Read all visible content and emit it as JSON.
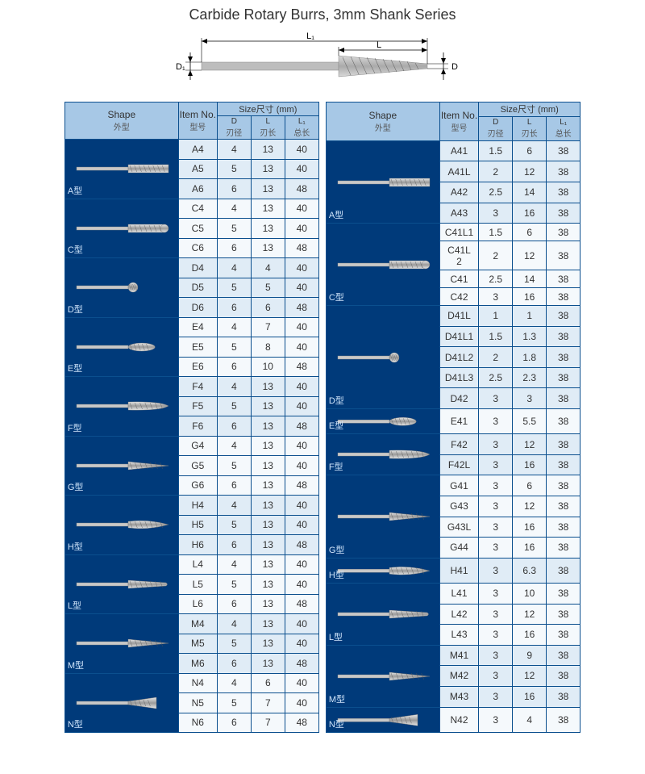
{
  "title": "Carbide Rotary Burrs, 3mm Shank Series",
  "diagram": {
    "labels": {
      "L1": "L₁",
      "L": "L",
      "D1": "D₁",
      "D": "D"
    }
  },
  "headers": {
    "shape": "Shape",
    "shape_sub": "外型",
    "item": "Item No.",
    "item_sub": "型号",
    "size": "Size尺寸   (mm)",
    "d": "D",
    "d_sub": "刃径",
    "l": "L",
    "l_sub": "刃长",
    "l1": "L₁",
    "l1_sub": "总长"
  },
  "left": {
    "groups": [
      {
        "label": "A型",
        "shape": "cylinder",
        "rows": [
          [
            "A4",
            "4",
            "13",
            "40"
          ],
          [
            "A5",
            "5",
            "13",
            "40"
          ],
          [
            "A6",
            "6",
            "13",
            "48"
          ]
        ]
      },
      {
        "label": "C型",
        "shape": "ball-nose",
        "rows": [
          [
            "C4",
            "4",
            "13",
            "40"
          ],
          [
            "C5",
            "5",
            "13",
            "40"
          ],
          [
            "C6",
            "6",
            "13",
            "48"
          ]
        ]
      },
      {
        "label": "D型",
        "shape": "ball",
        "rows": [
          [
            "D4",
            "4",
            "4",
            "40"
          ],
          [
            "D5",
            "5",
            "5",
            "40"
          ],
          [
            "D6",
            "6",
            "6",
            "48"
          ]
        ]
      },
      {
        "label": "E型",
        "shape": "oval",
        "rows": [
          [
            "E4",
            "4",
            "7",
            "40"
          ],
          [
            "E5",
            "5",
            "8",
            "40"
          ],
          [
            "E6",
            "6",
            "10",
            "48"
          ]
        ]
      },
      {
        "label": "F型",
        "shape": "tree-round",
        "rows": [
          [
            "F4",
            "4",
            "13",
            "40"
          ],
          [
            "F5",
            "5",
            "13",
            "40"
          ],
          [
            "F6",
            "6",
            "13",
            "48"
          ]
        ]
      },
      {
        "label": "G型",
        "shape": "tree-point",
        "rows": [
          [
            "G4",
            "4",
            "13",
            "40"
          ],
          [
            "G5",
            "5",
            "13",
            "40"
          ],
          [
            "G6",
            "6",
            "13",
            "48"
          ]
        ]
      },
      {
        "label": "H型",
        "shape": "flame",
        "rows": [
          [
            "H4",
            "4",
            "13",
            "40"
          ],
          [
            "H5",
            "5",
            "13",
            "40"
          ],
          [
            "H6",
            "6",
            "13",
            "48"
          ]
        ]
      },
      {
        "label": "L型",
        "shape": "cone-round",
        "rows": [
          [
            "L4",
            "4",
            "13",
            "40"
          ],
          [
            "L5",
            "5",
            "13",
            "40"
          ],
          [
            "L6",
            "6",
            "13",
            "48"
          ]
        ]
      },
      {
        "label": "M型",
        "shape": "cone",
        "rows": [
          [
            "M4",
            "4",
            "13",
            "40"
          ],
          [
            "M5",
            "5",
            "13",
            "40"
          ],
          [
            "M6",
            "6",
            "13",
            "48"
          ]
        ]
      },
      {
        "label": "N型",
        "shape": "inv-cone",
        "rows": [
          [
            "N4",
            "4",
            "6",
            "40"
          ],
          [
            "N5",
            "5",
            "7",
            "40"
          ],
          [
            "N6",
            "6",
            "7",
            "48"
          ]
        ]
      }
    ]
  },
  "right": {
    "groups": [
      {
        "label": "A型",
        "shape": "cylinder",
        "span": 4,
        "rows": [
          [
            "A41",
            "1.5",
            "6",
            "38"
          ],
          [
            "A41L",
            "2",
            "12",
            "38"
          ],
          [
            "A42",
            "2.5",
            "14",
            "38"
          ],
          [
            "A43",
            "3",
            "16",
            "38"
          ]
        ]
      },
      {
        "label": "C型",
        "shape": "ball-nose",
        "span": 4,
        "rows": [
          [
            "C41L1",
            "1.5",
            "6",
            "38"
          ],
          [
            "C41L 2",
            "2",
            "12",
            "38"
          ],
          [
            "C41",
            "2.5",
            "14",
            "38"
          ],
          [
            "C42",
            "3",
            "16",
            "38"
          ]
        ]
      },
      {
        "label": "D型",
        "shape": "ball",
        "span": 5,
        "rows": [
          [
            "D41L",
            "1",
            "1",
            "38"
          ],
          [
            "D41L1",
            "1.5",
            "1.3",
            "38"
          ],
          [
            "D41L2",
            "2",
            "1.8",
            "38"
          ],
          [
            "D41L3",
            "2.5",
            "2.3",
            "38"
          ],
          [
            "D42",
            "3",
            "3",
            "38"
          ]
        ]
      },
      {
        "label": "E型",
        "shape": "oval",
        "span": 1,
        "rows": [
          [
            "E41",
            "3",
            "5.5",
            "38"
          ]
        ]
      },
      {
        "label": "F型",
        "shape": "tree-round",
        "span": 2,
        "rows": [
          [
            "F42",
            "3",
            "12",
            "38"
          ],
          [
            "F42L",
            "3",
            "16",
            "38"
          ]
        ]
      },
      {
        "label": "G型",
        "shape": "tree-point",
        "span": 4,
        "rows": [
          [
            "G41",
            "3",
            "6",
            "38"
          ],
          [
            "G43",
            "3",
            "12",
            "38"
          ],
          [
            "G43L",
            "3",
            "16",
            "38"
          ],
          [
            "G44",
            "3",
            "16",
            "38"
          ]
        ]
      },
      {
        "label": "H型",
        "shape": "flame",
        "span": 1,
        "rows": [
          [
            "H41",
            "3",
            "6.3",
            "38"
          ]
        ]
      },
      {
        "label": "L型",
        "shape": "cone-round",
        "span": 3,
        "rows": [
          [
            "L41",
            "3",
            "10",
            "38"
          ],
          [
            "L42",
            "3",
            "12",
            "38"
          ],
          [
            "L43",
            "3",
            "16",
            "38"
          ]
        ]
      },
      {
        "label": "M型",
        "shape": "cone",
        "span": 3,
        "rows": [
          [
            "M41",
            "3",
            "9",
            "38"
          ],
          [
            "M42",
            "3",
            "12",
            "38"
          ],
          [
            "M43",
            "3",
            "16",
            "38"
          ]
        ]
      },
      {
        "label": "N型",
        "shape": "inv-cone",
        "span": 1,
        "rows": [
          [
            "N42",
            "3",
            "4",
            "38"
          ]
        ]
      }
    ]
  },
  "colors": {
    "header_bg": "#a7c8e6",
    "shape_bg": "#003a7a",
    "border": "#0b4f8e",
    "alt0": "#e0ecf6",
    "alt1": "#f5f9fc"
  }
}
